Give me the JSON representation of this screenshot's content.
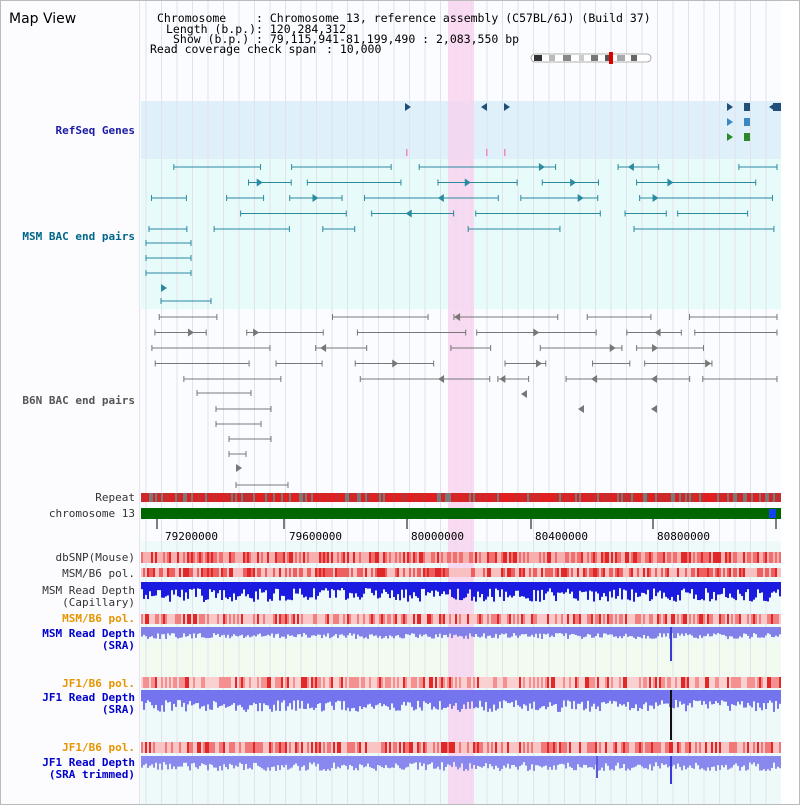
{
  "title": "Map View",
  "header": {
    "chromosome_key": "Chromosome",
    "chromosome_val": ": Chromosome 13, reference assembly (C57BL/6J) (Build 37)",
    "length_key": "Length (b.p.)",
    "length_val": ": 120,284,312",
    "show_key": "Show (b.p.)",
    "show_val": ": 79,115,941-81,199,490 : 2,083,550 bp",
    "coverage_key": "Read coverage check span",
    "coverage_val": ": 10,000"
  },
  "tracks": {
    "refseq": "RefSeq Genes",
    "msm_bac": "MSM BAC end pairs",
    "b6n_bac": "B6N BAC end pairs",
    "repeat": "Repeat",
    "chromosome": "chromosome 13",
    "dbsnp": "dbSNP(Mouse)",
    "msm_b6_pol": "MSM/B6 pol.",
    "msm_depth_cap_1": "MSM Read Depth",
    "msm_depth_cap_2": "(Capillary)",
    "msm_b6_pol_2": "MSM/B6 pol.",
    "msm_depth_sra_1": "MSM Read Depth",
    "msm_depth_sra_2": "(SRA)",
    "jf1_b6_pol": "JF1/B6 pol.",
    "jf1_depth_sra_1": "JF1 Read Depth",
    "jf1_depth_sra_2": "(SRA)",
    "jf1_b6_pol_2": "JF1/B6 pol.",
    "jf1_depth_trim_1": "JF1 Read Depth",
    "jf1_depth_trim_2": "(SRA trimmed)"
  },
  "ruler": {
    "ticks": [
      "79200000",
      "79600000",
      "80000000",
      "80400000",
      "80800000"
    ]
  },
  "colors": {
    "refseq_label": "#1a1aa6",
    "msm_bac_label": "#006688",
    "b6n_bac_label": "#555555",
    "pol_label": "#e69500",
    "depth_label": "#0000cc",
    "refseq_bg": "#dff0fa",
    "msm_bac_bg": "#e8fbfb",
    "highlight": "#f7d4ee",
    "chromosome_bar": "#006600"
  }
}
